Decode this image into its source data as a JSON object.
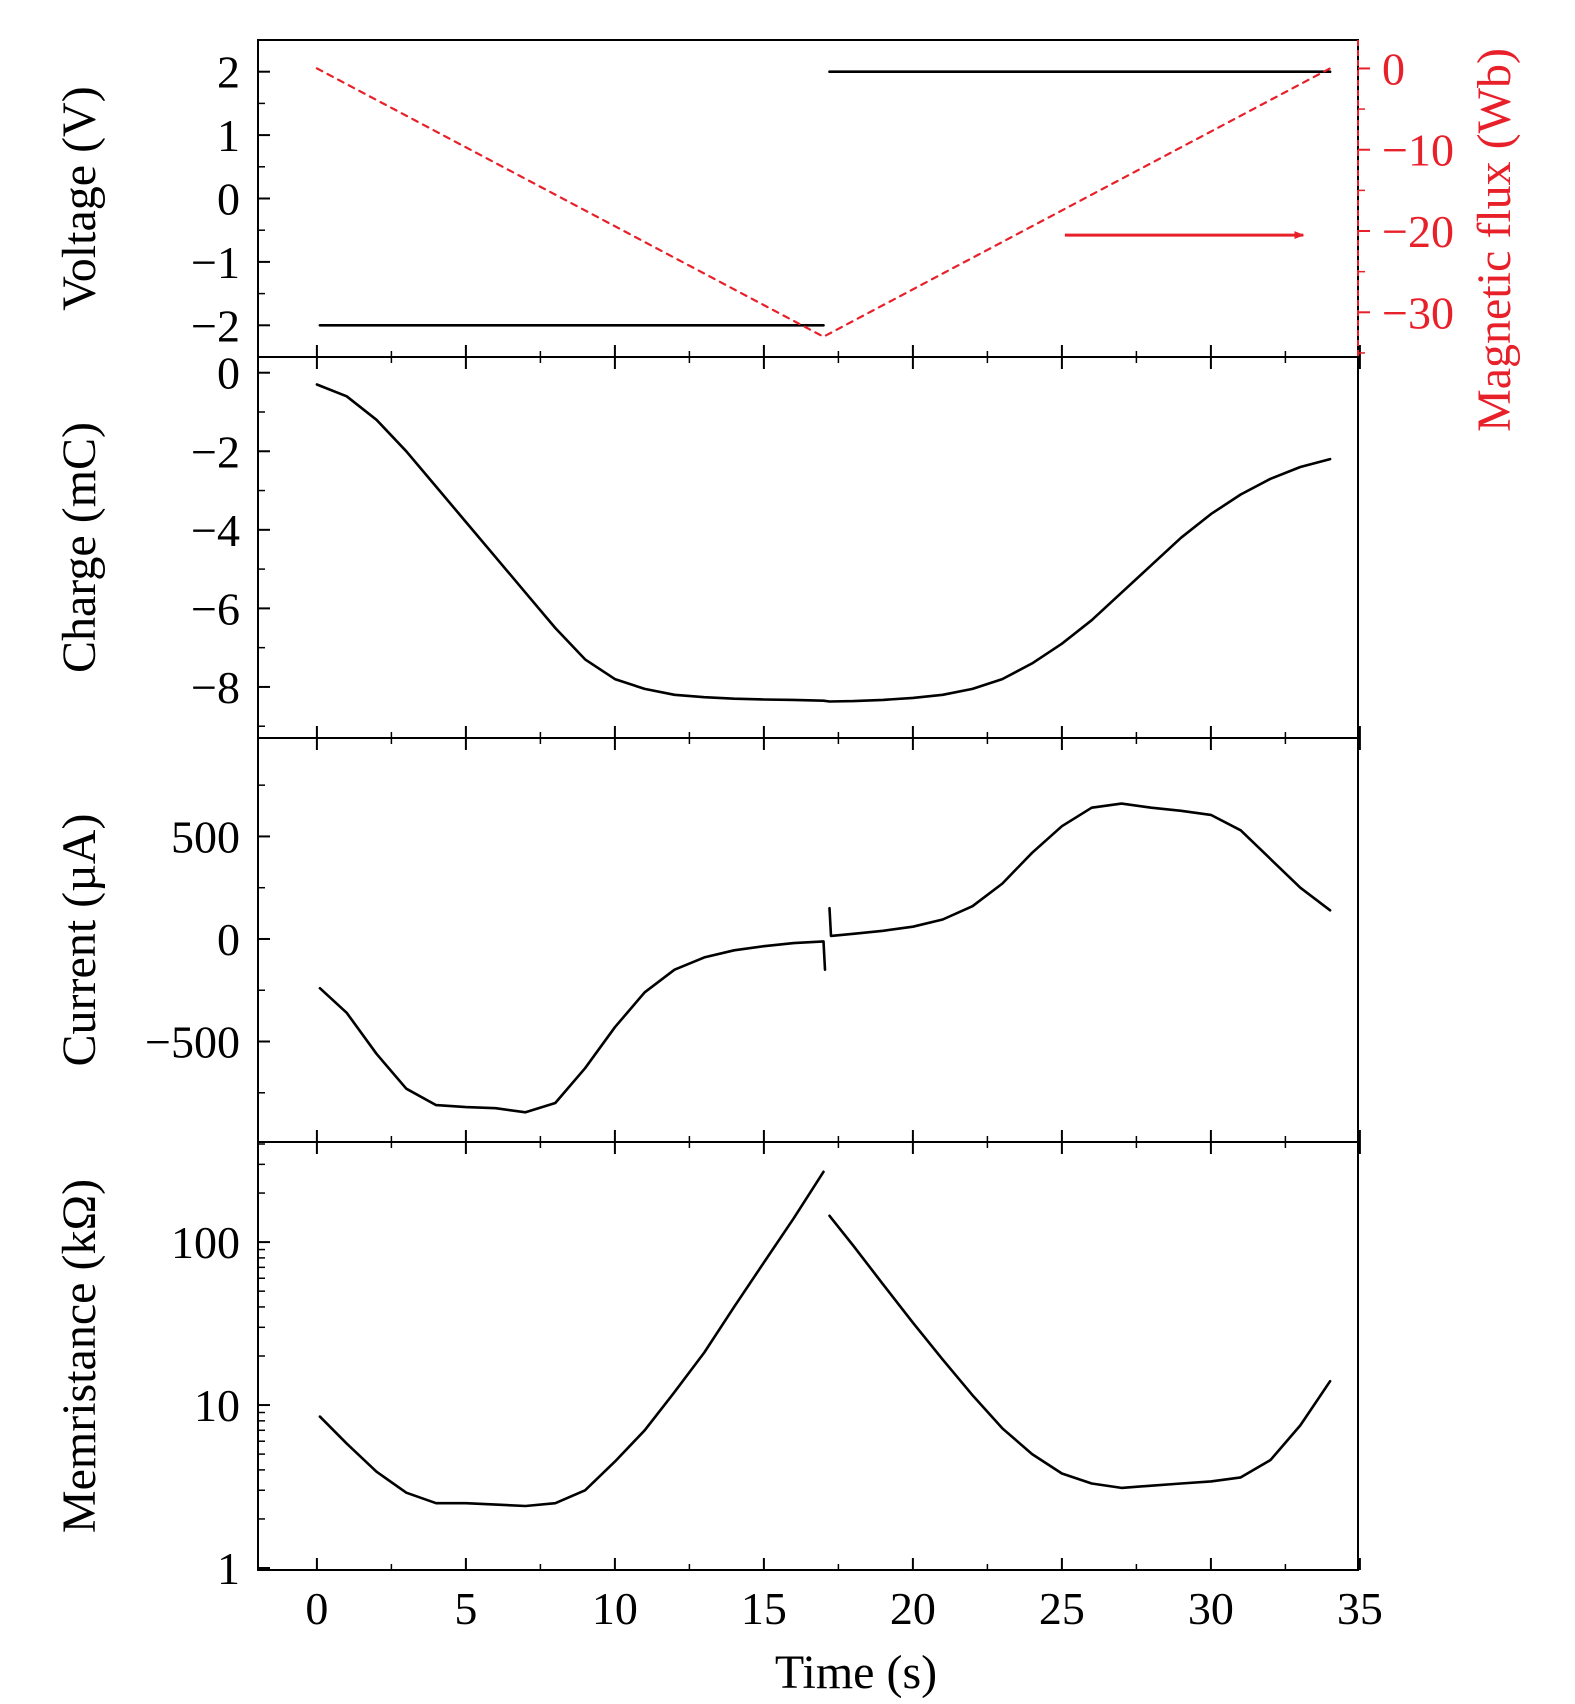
{
  "chart_data": [
    {
      "type": "line",
      "panel": "voltage",
      "ylabel": "Voltage (V)",
      "ylim": [
        -2.5,
        2.5
      ],
      "yticks": [
        2,
        1,
        0,
        -1,
        -2
      ],
      "ytick_labels": [
        "2",
        "1",
        "0",
        "−1",
        "−2"
      ],
      "y2label": "Magnetic flux (Wb)",
      "y2lim": [
        -35.5,
        3.5
      ],
      "y2ticks": [
        0,
        -10,
        -20,
        -30
      ],
      "y2tick_labels": [
        "0",
        "−10",
        "−20",
        "−30"
      ],
      "series": [
        {
          "axis": "left",
          "color": "#000000",
          "style": "solid",
          "x": [
            0.1,
            17,
            null,
            17.2,
            34
          ],
          "y": [
            -2,
            -2,
            null,
            2,
            2
          ]
        },
        {
          "axis": "right",
          "color": "#e8202a",
          "style": "dashed",
          "x": [
            0,
            17,
            34
          ],
          "y": [
            0,
            -33,
            0
          ]
        }
      ],
      "annotations": [
        {
          "type": "arrow",
          "points_to": "right-axis",
          "color": "#e8202a",
          "x_start": 25.1,
          "x_end": 33.1,
          "y": -20.5
        }
      ]
    },
    {
      "type": "line",
      "panel": "charge",
      "ylabel": "Charge (mC)",
      "ylim": [
        -9.3,
        0.4
      ],
      "yticks": [
        0,
        -2,
        -4,
        -6,
        -8
      ],
      "ytick_labels": [
        "0",
        "−2",
        "−4",
        "−6",
        "−8"
      ],
      "series": [
        {
          "color": "#000000",
          "style": "solid",
          "x": [
            0,
            1,
            2,
            3,
            4,
            5,
            6,
            7,
            8,
            9,
            10,
            11,
            12,
            13,
            14,
            15,
            16,
            17,
            17.2,
            18,
            19,
            20,
            21,
            22,
            23,
            24,
            25,
            26,
            27,
            28,
            29,
            30,
            31,
            32,
            33,
            34
          ],
          "y": [
            -0.3,
            -0.6,
            -1.2,
            -2.0,
            -2.9,
            -3.8,
            -4.7,
            -5.6,
            -6.5,
            -7.3,
            -7.8,
            -8.05,
            -8.2,
            -8.26,
            -8.3,
            -8.32,
            -8.33,
            -8.35,
            -8.37,
            -8.36,
            -8.33,
            -8.28,
            -8.2,
            -8.05,
            -7.8,
            -7.4,
            -6.9,
            -6.3,
            -5.6,
            -4.9,
            -4.2,
            -3.6,
            -3.1,
            -2.7,
            -2.4,
            -2.2
          ]
        }
      ]
    },
    {
      "type": "line",
      "panel": "current",
      "ylabel": "Current (µA)",
      "ylim": [
        -990,
        980
      ],
      "yticks": [
        500,
        0,
        -500
      ],
      "ytick_labels": [
        "500",
        "0",
        "−500"
      ],
      "series": [
        {
          "color": "#000000",
          "style": "solid",
          "x": [
            0.1,
            1,
            2,
            3,
            4,
            5,
            6,
            7,
            8,
            9,
            10,
            11,
            12,
            13,
            14,
            15,
            16,
            17,
            17.05,
            null,
            17.2,
            17.25,
            18,
            19,
            20,
            21,
            22,
            23,
            24,
            25,
            26,
            27,
            28,
            29,
            30,
            31,
            32,
            33,
            34
          ],
          "y": [
            -240,
            -360,
            -560,
            -730,
            -810,
            -820,
            -825,
            -845,
            -800,
            -630,
            -430,
            -260,
            -150,
            -90,
            -55,
            -35,
            -20,
            -12,
            -150,
            null,
            150,
            15,
            25,
            40,
            60,
            95,
            160,
            270,
            420,
            550,
            640,
            660,
            640,
            625,
            605,
            530,
            390,
            250,
            140
          ]
        }
      ]
    },
    {
      "type": "line",
      "panel": "memristance",
      "ylabel": "Memristance (kΩ)",
      "yscale": "log",
      "ylim": [
        1,
        400
      ],
      "yticks": [
        1,
        10,
        100
      ],
      "ytick_labels": [
        "1",
        "10",
        "100"
      ],
      "xlabel": "Time (s)",
      "xlim": [
        -2,
        35
      ],
      "xticks": [
        0,
        5,
        10,
        15,
        20,
        25,
        30,
        35
      ],
      "xtick_labels": [
        "0",
        "5",
        "10",
        "15",
        "20",
        "25",
        "30",
        "35"
      ],
      "series": [
        {
          "color": "#000000",
          "style": "solid",
          "x": [
            0.1,
            1,
            2,
            3,
            4,
            5,
            6,
            7,
            8,
            9,
            10,
            11,
            12,
            13,
            14,
            15,
            16,
            17,
            null,
            17.2,
            18,
            19,
            20,
            21,
            22,
            23,
            24,
            25,
            26,
            27,
            28,
            29,
            30,
            31,
            32,
            33,
            34
          ],
          "y": [
            8.5,
            5.8,
            3.9,
            2.9,
            2.5,
            2.5,
            2.45,
            2.4,
            2.5,
            3.0,
            4.5,
            7.0,
            12,
            21,
            40,
            75,
            140,
            270,
            null,
            145,
            95,
            55,
            32,
            19,
            11.5,
            7.2,
            5.0,
            3.8,
            3.3,
            3.1,
            3.2,
            3.3,
            3.4,
            3.6,
            4.6,
            7.5,
            14
          ]
        }
      ]
    }
  ]
}
